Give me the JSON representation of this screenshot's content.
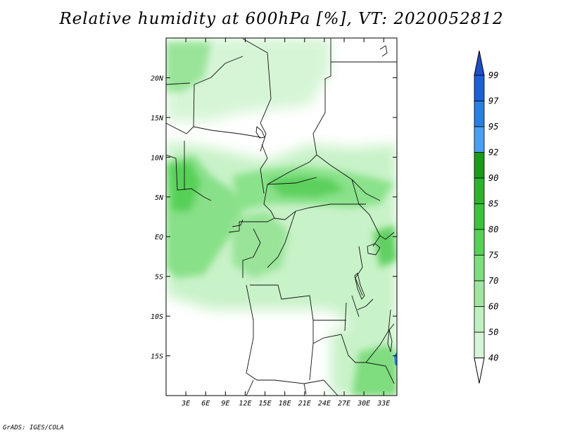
{
  "title": "Relative humidity at 600hPa [%], VT: 2020052812",
  "credit": "GrADS: IGES/COLA",
  "map": {
    "lon_range": [
      0,
      35
    ],
    "lat_range": [
      -20,
      25
    ],
    "lat_ticks": [
      {
        "value": 20,
        "label": "20N"
      },
      {
        "value": 15,
        "label": "15N"
      },
      {
        "value": 10,
        "label": "10N"
      },
      {
        "value": 5,
        "label": "5N"
      },
      {
        "value": 0,
        "label": "EQ"
      },
      {
        "value": -5,
        "label": "5S"
      },
      {
        "value": -10,
        "label": "10S"
      },
      {
        "value": -15,
        "label": "15S"
      }
    ],
    "lon_ticks": [
      {
        "value": 3,
        "label": "3E"
      },
      {
        "value": 6,
        "label": "6E"
      },
      {
        "value": 9,
        "label": "9E"
      },
      {
        "value": 12,
        "label": "12E"
      },
      {
        "value": 15,
        "label": "15E"
      },
      {
        "value": 18,
        "label": "18E"
      },
      {
        "value": 21,
        "label": "21E"
      },
      {
        "value": 24,
        "label": "24E"
      },
      {
        "value": 27,
        "label": "27E"
      },
      {
        "value": 30,
        "label": "30E"
      },
      {
        "value": 33,
        "label": "33E"
      }
    ]
  },
  "colorbar": {
    "levels": [
      "99",
      "97",
      "95",
      "92",
      "90",
      "85",
      "80",
      "75",
      "70",
      "60",
      "50",
      "40"
    ],
    "colors": [
      "#1e5fd4",
      "#2a7fe0",
      "#4aa0ee",
      "#1a9a1a",
      "#2eb22e",
      "#3ec23e",
      "#56d056",
      "#7ede7e",
      "#a0e6a0",
      "#bff0bf",
      "#d6f5d6",
      "#eafbea",
      "#ffffff"
    ],
    "top_color": "#1f4fc8"
  }
}
